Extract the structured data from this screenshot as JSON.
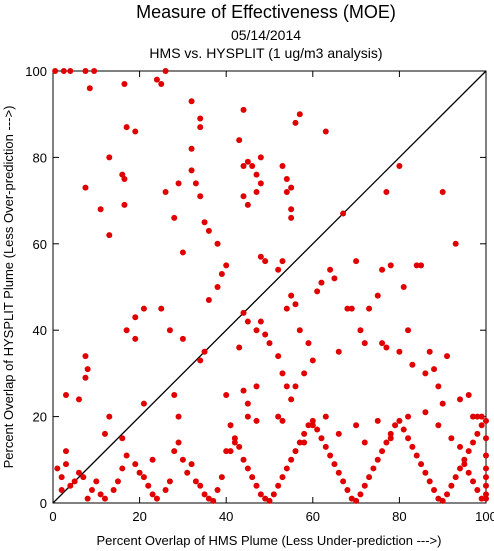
{
  "chart_data": {
    "type": "scatter",
    "title": "Measure of Effectiveness (MOE)",
    "subtitle_date": "05/14/2014",
    "subtitle_analysis": "HMS vs. HYSPLIT  (1 ug/m3 analysis)",
    "xlabel": "Percent Overlap of HMS Plume (Less Under-prediction --->)",
    "ylabel": "Percent Overlap of HYSPLIT Plume (Less Over-prediction --->)",
    "xlim": [
      0,
      100
    ],
    "ylim": [
      0,
      100
    ],
    "xticks": [
      "0",
      "20",
      "40",
      "60",
      "80",
      "100"
    ],
    "yticks": [
      "0",
      "20",
      "40",
      "60",
      "80",
      "100"
    ],
    "reference_line": "y = x",
    "point_color": "#e00000",
    "points": [
      [
        0.5,
        100
      ],
      [
        2.5,
        100
      ],
      [
        4,
        100
      ],
      [
        7.5,
        100
      ],
      [
        9.5,
        100
      ],
      [
        26,
        100
      ],
      [
        8.5,
        96
      ],
      [
        24,
        98
      ],
      [
        25,
        97
      ],
      [
        16.5,
        97
      ],
      [
        32,
        93
      ],
      [
        34,
        89
      ],
      [
        34,
        87
      ],
      [
        13,
        80
      ],
      [
        16,
        76
      ],
      [
        16.5,
        75
      ],
      [
        7.5,
        73
      ],
      [
        11,
        68
      ],
      [
        16.5,
        69
      ],
      [
        13,
        62
      ],
      [
        17,
        87
      ],
      [
        19,
        86
      ],
      [
        21,
        45
      ],
      [
        19,
        43
      ],
      [
        25,
        45
      ],
      [
        17,
        40
      ],
      [
        19,
        38
      ],
      [
        27,
        40
      ],
      [
        30,
        38
      ],
      [
        35,
        35
      ],
      [
        34,
        33
      ],
      [
        36,
        47
      ],
      [
        7.5,
        34
      ],
      [
        8,
        31
      ],
      [
        7.5,
        29
      ],
      [
        3,
        25
      ],
      [
        6,
        24
      ],
      [
        13,
        20
      ],
      [
        21,
        23
      ],
      [
        23,
        10
      ],
      [
        12,
        16
      ],
      [
        16,
        15
      ],
      [
        26,
        72
      ],
      [
        28,
        66
      ],
      [
        29,
        74
      ],
      [
        30,
        58
      ],
      [
        32,
        82
      ],
      [
        32,
        77
      ],
      [
        33,
        74
      ],
      [
        34,
        71
      ],
      [
        35,
        65
      ],
      [
        36,
        63
      ],
      [
        38,
        60
      ],
      [
        40,
        55
      ],
      [
        39,
        53
      ],
      [
        38,
        50
      ],
      [
        28,
        25
      ],
      [
        29,
        20
      ],
      [
        43,
        84
      ],
      [
        44,
        78
      ],
      [
        44,
        71
      ],
      [
        44,
        91
      ],
      [
        45,
        79
      ],
      [
        46,
        78
      ],
      [
        47,
        76
      ],
      [
        47,
        72
      ],
      [
        48,
        74
      ],
      [
        48,
        80
      ],
      [
        45,
        69
      ],
      [
        49,
        56
      ],
      [
        48,
        57
      ],
      [
        53,
        78
      ],
      [
        54,
        75
      ],
      [
        54,
        72
      ],
      [
        55,
        73
      ],
      [
        55,
        68
      ],
      [
        55,
        66
      ],
      [
        56,
        88
      ],
      [
        57,
        90
      ],
      [
        53,
        56
      ],
      [
        55,
        48
      ],
      [
        56,
        46
      ],
      [
        52,
        54
      ],
      [
        54,
        45
      ],
      [
        40,
        25
      ],
      [
        44,
        26
      ],
      [
        45,
        23
      ],
      [
        47,
        27
      ],
      [
        45,
        42
      ],
      [
        48,
        42
      ],
      [
        47,
        40
      ],
      [
        43,
        36
      ],
      [
        49,
        39
      ],
      [
        50,
        37
      ],
      [
        52,
        34
      ],
      [
        53,
        30
      ],
      [
        54,
        27
      ],
      [
        55,
        24
      ],
      [
        56,
        27
      ],
      [
        57,
        40
      ],
      [
        59,
        37
      ],
      [
        60,
        33
      ],
      [
        58,
        30
      ],
      [
        61,
        49
      ],
      [
        62,
        51
      ],
      [
        63,
        86
      ],
      [
        64,
        54
      ],
      [
        65,
        52
      ],
      [
        67,
        67
      ],
      [
        66,
        35
      ],
      [
        68,
        45
      ],
      [
        69,
        45
      ],
      [
        70,
        56
      ],
      [
        71,
        40
      ],
      [
        72,
        37
      ],
      [
        73,
        45
      ],
      [
        75,
        48
      ],
      [
        76,
        37
      ],
      [
        77,
        72
      ],
      [
        77,
        36
      ],
      [
        76,
        54
      ],
      [
        78,
        55
      ],
      [
        80,
        78
      ],
      [
        81,
        50
      ],
      [
        82,
        40
      ],
      [
        80,
        35
      ],
      [
        83,
        32
      ],
      [
        84,
        55
      ],
      [
        85,
        55
      ],
      [
        86,
        30
      ],
      [
        87,
        35
      ],
      [
        88,
        31
      ],
      [
        89,
        27
      ],
      [
        89,
        18
      ],
      [
        90,
        72
      ],
      [
        91,
        34
      ],
      [
        93,
        60
      ],
      [
        94,
        24
      ],
      [
        96,
        25
      ],
      [
        98,
        20
      ],
      [
        99,
        20
      ],
      [
        97,
        20
      ],
      [
        1,
        8
      ],
      [
        2,
        6
      ],
      [
        2,
        3
      ],
      [
        3,
        9
      ],
      [
        3,
        12
      ],
      [
        4,
        4
      ],
      [
        5,
        5
      ],
      [
        6,
        7
      ],
      [
        7,
        6
      ],
      [
        8,
        1
      ],
      [
        9,
        3
      ],
      [
        10,
        5
      ],
      [
        11,
        2
      ],
      [
        12,
        1
      ],
      [
        14,
        3
      ],
      [
        15,
        5
      ],
      [
        16,
        8
      ],
      [
        17,
        11
      ],
      [
        19,
        9
      ],
      [
        20,
        7
      ],
      [
        21,
        6
      ],
      [
        22,
        4
      ],
      [
        23,
        2
      ],
      [
        24,
        1
      ],
      [
        26,
        3
      ],
      [
        27,
        5
      ],
      [
        28,
        12
      ],
      [
        29,
        14
      ],
      [
        30,
        10
      ],
      [
        31,
        7
      ],
      [
        32,
        9
      ],
      [
        33,
        5
      ],
      [
        34,
        4
      ],
      [
        35,
        2
      ],
      [
        36,
        1
      ],
      [
        37,
        0.5
      ],
      [
        38,
        3
      ],
      [
        39,
        6
      ],
      [
        40,
        12
      ],
      [
        41,
        18
      ],
      [
        42,
        15
      ],
      [
        43,
        13
      ],
      [
        44,
        10
      ],
      [
        45,
        8
      ],
      [
        46,
        6
      ],
      [
        47,
        4
      ],
      [
        48,
        2
      ],
      [
        49,
        1
      ],
      [
        50,
        0.5
      ],
      [
        51,
        2
      ],
      [
        52,
        4
      ],
      [
        53,
        6
      ],
      [
        54,
        8
      ],
      [
        55,
        10
      ],
      [
        56,
        12
      ],
      [
        57,
        14
      ],
      [
        58,
        16
      ],
      [
        59,
        18
      ],
      [
        60,
        19
      ],
      [
        61,
        17
      ],
      [
        62,
        15
      ],
      [
        63,
        13
      ],
      [
        64,
        11
      ],
      [
        65,
        9
      ],
      [
        66,
        7
      ],
      [
        67,
        5
      ],
      [
        68,
        3
      ],
      [
        69,
        1
      ],
      [
        70,
        0.5
      ],
      [
        71,
        2
      ],
      [
        72,
        4
      ],
      [
        73,
        6
      ],
      [
        74,
        8
      ],
      [
        75,
        10
      ],
      [
        76,
        12
      ],
      [
        77,
        14
      ],
      [
        78,
        16
      ],
      [
        79,
        18
      ],
      [
        80,
        19
      ],
      [
        81,
        17
      ],
      [
        82,
        15
      ],
      [
        83,
        13
      ],
      [
        84,
        11
      ],
      [
        85,
        9
      ],
      [
        86,
        7
      ],
      [
        87,
        5
      ],
      [
        88,
        3
      ],
      [
        89,
        1
      ],
      [
        90,
        0.5
      ],
      [
        91,
        2
      ],
      [
        92,
        4
      ],
      [
        93,
        6
      ],
      [
        94,
        8
      ],
      [
        95,
        10
      ],
      [
        96,
        12
      ],
      [
        97,
        14
      ],
      [
        98,
        16
      ],
      [
        99,
        18
      ],
      [
        100,
        19
      ],
      [
        100,
        15
      ],
      [
        100,
        11
      ],
      [
        100,
        8
      ],
      [
        100,
        6
      ],
      [
        100,
        4
      ],
      [
        100,
        2
      ],
      [
        100,
        1
      ],
      [
        99,
        1
      ],
      [
        98,
        3
      ],
      [
        97,
        5
      ],
      [
        96,
        7
      ],
      [
        95,
        9
      ],
      [
        44,
        44
      ],
      [
        45,
        20
      ],
      [
        47,
        19
      ],
      [
        41,
        12
      ],
      [
        42,
        14
      ],
      [
        52,
        20
      ],
      [
        53,
        19
      ],
      [
        58,
        14
      ],
      [
        60,
        18
      ],
      [
        63,
        20
      ],
      [
        66,
        16
      ],
      [
        70,
        18
      ],
      [
        72,
        14
      ],
      [
        75,
        19
      ],
      [
        78,
        15
      ],
      [
        82,
        20
      ],
      [
        86,
        21
      ],
      [
        90,
        23
      ],
      [
        92,
        15
      ],
      [
        94,
        13
      ]
    ]
  }
}
